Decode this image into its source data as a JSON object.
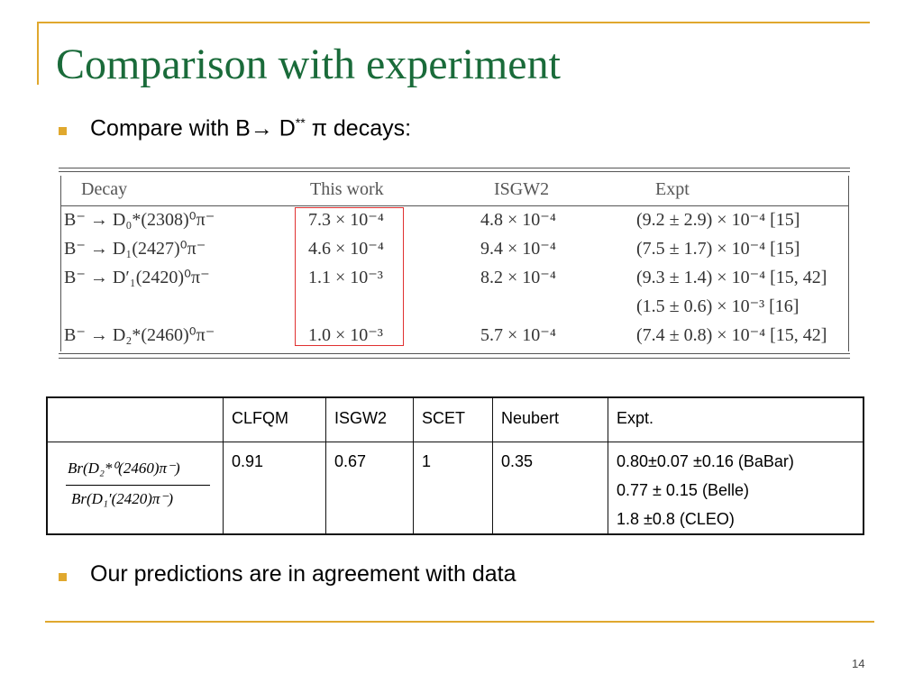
{
  "title": "Comparison with experiment",
  "bullets": [
    {
      "text": "Compare with B→ D",
      "sup": "**",
      "tail": " π decays:"
    },
    {
      "text": "Our predictions are in agreement with data"
    }
  ],
  "table1": {
    "header": [
      "Decay",
      "This work",
      "ISGW2",
      "Expt"
    ],
    "rows": [
      {
        "decay": "B⁻ → D₀*(2308)⁰π⁻",
        "this_work": "7.3 × 10⁻⁴",
        "isgw2": "4.8 × 10⁻⁴",
        "expt": [
          "(9.2 ± 2.9) × 10⁻⁴ [15]"
        ]
      },
      {
        "decay": "B⁻ → D₁(2427)⁰π⁻",
        "this_work": "4.6 × 10⁻⁴",
        "isgw2": "9.4 × 10⁻⁴",
        "expt": [
          "(7.5 ± 1.7) × 10⁻⁴ [15]"
        ]
      },
      {
        "decay": "B⁻ → D′₁(2420)⁰π⁻",
        "this_work": "1.1 × 10⁻³",
        "isgw2": "8.2 × 10⁻⁴",
        "expt": [
          "(9.3 ± 1.4) × 10⁻⁴ [15, 42]",
          "(1.5 ± 0.6) × 10⁻³ [16]"
        ]
      },
      {
        "decay": "B⁻ → D₂*(2460)⁰π⁻",
        "this_work": "1.0 × 10⁻³",
        "isgw2": "5.7 × 10⁻⁴",
        "expt": [
          "(7.4 ± 0.8) × 10⁻⁴ [15, 42]"
        ]
      }
    ]
  },
  "table2": {
    "header": [
      "CLFQM",
      "ISGW2",
      "SCET",
      "Neubert",
      "Expt."
    ],
    "ratio": {
      "numerator": "Br(D₂*⁰(2460)π⁻)",
      "denominator": "Br(D₁′(2420)π⁻)"
    },
    "values": [
      "0.91",
      "0.67",
      "1",
      "0.35"
    ],
    "expt": [
      "0.80±0.07 ±0.16 (BaBar)",
      "0.77 ± 0.15 (Belle)",
      "1.8 ±0.8 (CLEO)"
    ]
  },
  "page_number": "14"
}
